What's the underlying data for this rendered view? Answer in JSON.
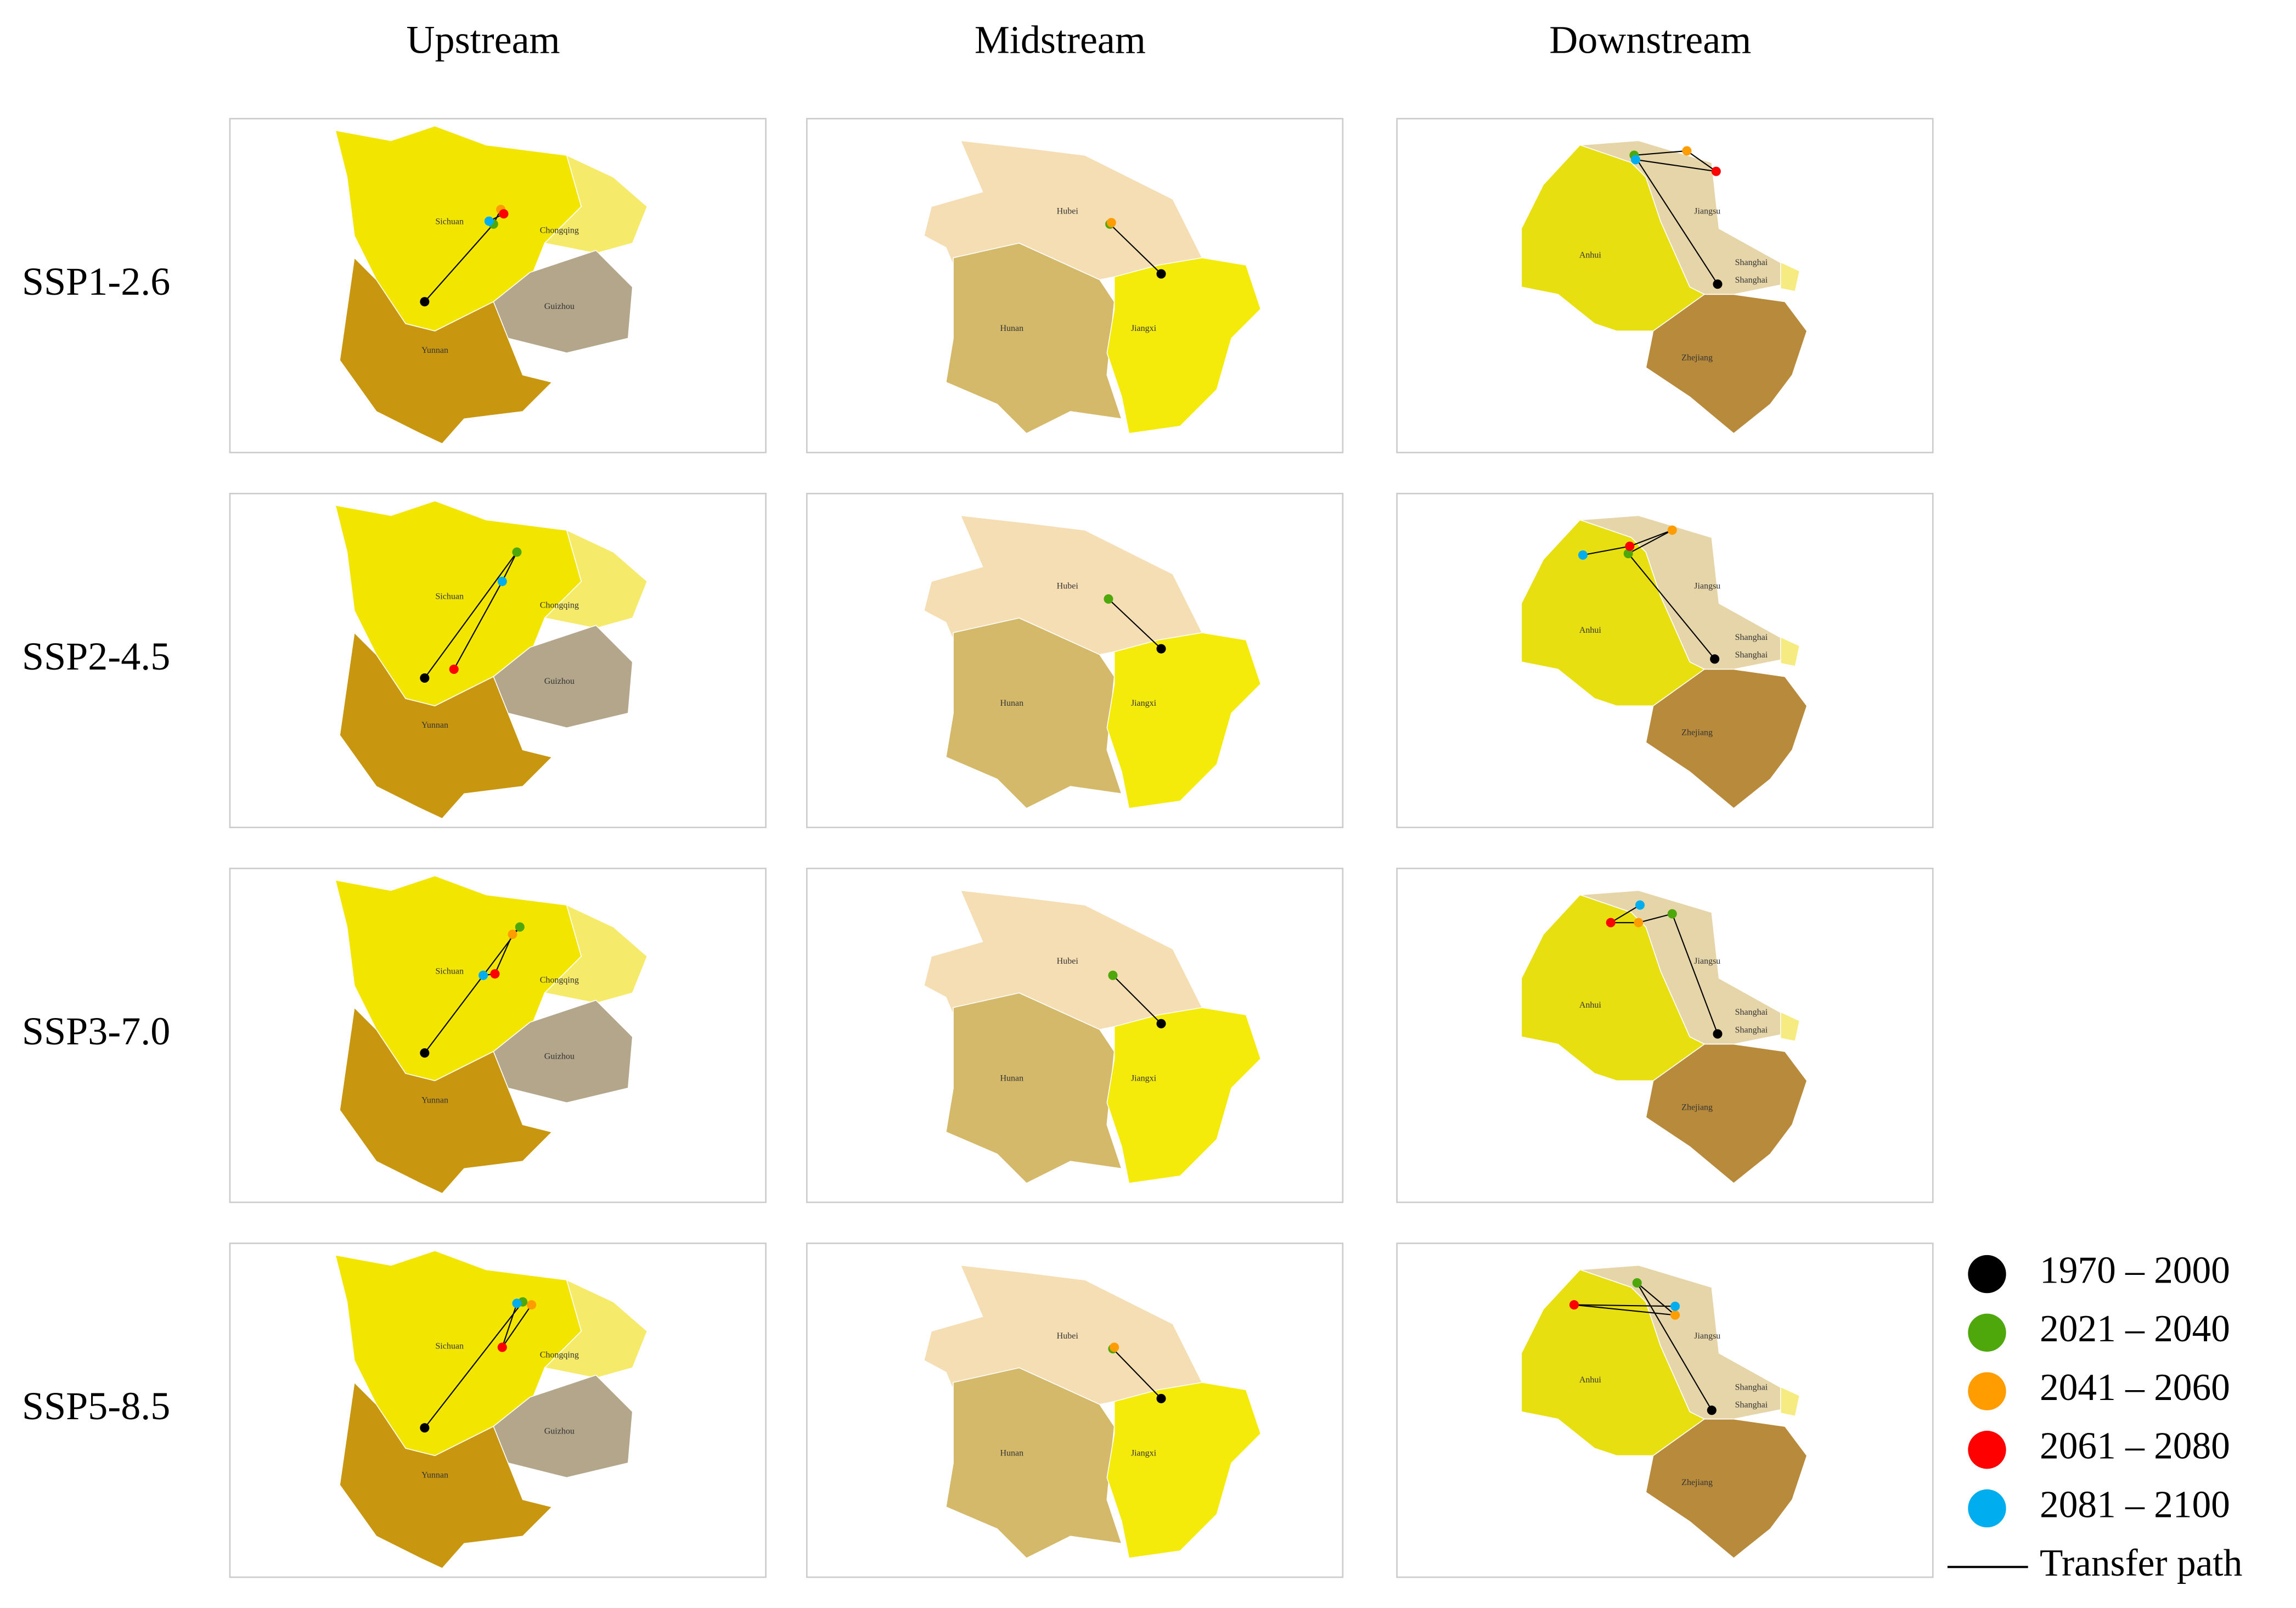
{
  "columns": [
    "Upstream",
    "Midstream",
    "Downstream"
  ],
  "rows": [
    "SSP1-2.6",
    "SSP2-4.5",
    "SSP3-7.0",
    "SSP5-8.5"
  ],
  "regions": [
    [
      "Sichuan",
      "Chongqing",
      "Guizhou",
      "Yunnan"
    ],
    [
      "Hubei",
      "Hunan",
      "Jiangxi"
    ],
    [
      "Jiangsu",
      "Anhui",
      "Shanghai",
      "Shanghai",
      "Zhejiang"
    ]
  ],
  "legend": {
    "items": [
      {
        "label": "1970 – 2000",
        "color": "#000000"
      },
      {
        "label": "2021 – 2040",
        "color": "#4ea80c"
      },
      {
        "label": "2041 – 2060",
        "color": "#ff9d00"
      },
      {
        "label": "2061 – 2080",
        "color": "#ff0000"
      },
      {
        "label": "2081 – 2100",
        "color": "#00aeef"
      }
    ],
    "path_label": "Transfer path"
  }
}
